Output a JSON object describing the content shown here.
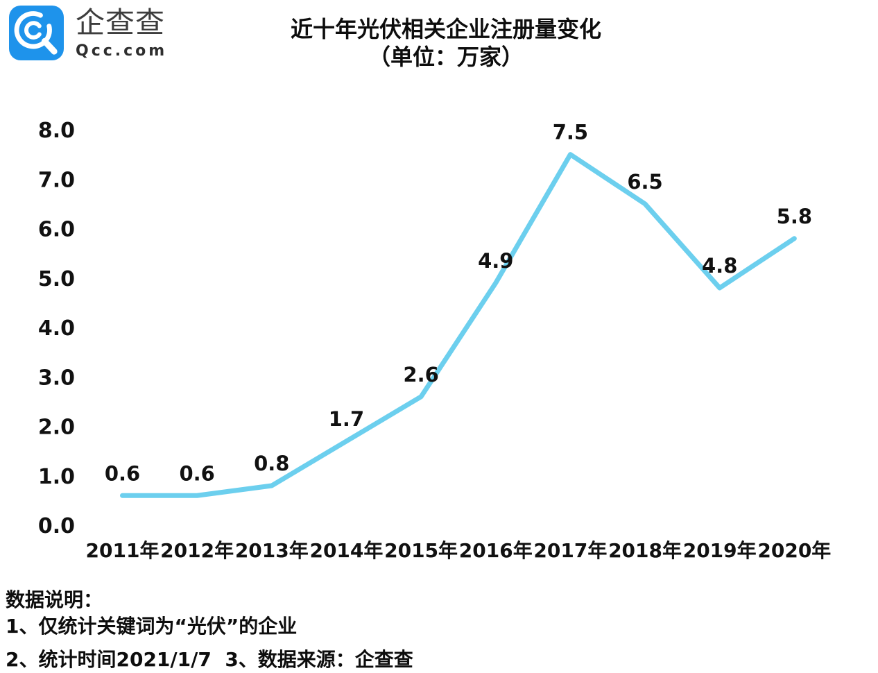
{
  "header": {
    "brand": {
      "name": "企查查",
      "domain": "Qcc.com"
    },
    "title_line1": "近十年光伏相关企业注册量变化",
    "title_line2": "（单位：万家）"
  },
  "chart_data": {
    "type": "line",
    "title": "近十年光伏相关企业注册量变化",
    "subtitle": "（单位：万家）",
    "categories": [
      "2011年",
      "2012年",
      "2013年",
      "2014年",
      "2015年",
      "2016年",
      "2017年",
      "2018年",
      "2019年",
      "2020年"
    ],
    "values": [
      0.6,
      0.6,
      0.8,
      1.7,
      2.6,
      4.9,
      7.5,
      6.5,
      4.8,
      5.8
    ],
    "data_labels": [
      "0.6",
      "0.6",
      "0.8",
      "1.7",
      "2.6",
      "4.9",
      "7.5",
      "6.5",
      "4.8",
      "5.8"
    ],
    "y_ticks": [
      "8.0",
      "7.0",
      "6.0",
      "5.0",
      "4.0",
      "3.0",
      "2.0",
      "1.0",
      "0.0"
    ],
    "ylim": [
      0,
      8
    ],
    "xlabel": "",
    "ylabel": "",
    "grid": false,
    "legend_position": "none",
    "line_color": "#6CCFEE",
    "label_color": "#111111"
  },
  "footer": {
    "heading": "数据说明：",
    "notes": [
      "1、仅统计关键词为“光伏”的企业",
      "2、统计时间2021/1/7  3、数据来源：企查查"
    ]
  },
  "brand_colors": {
    "logo_blue": "#1E93EB"
  }
}
